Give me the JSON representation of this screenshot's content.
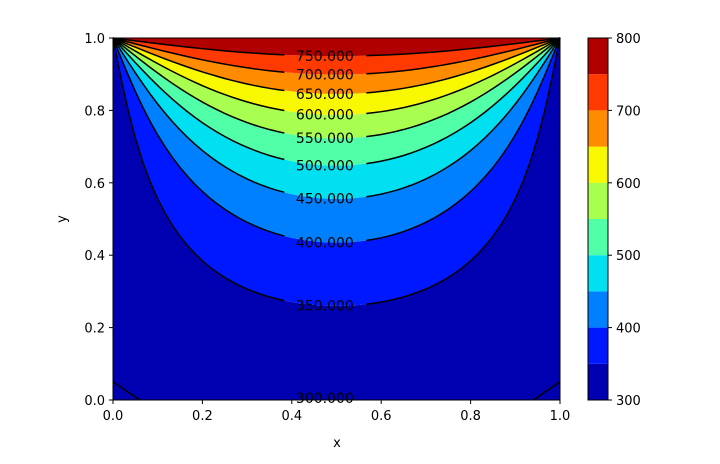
{
  "chart_data": {
    "type": "contour",
    "title": "",
    "xlabel": "x",
    "ylabel": "y",
    "xlim": [
      0.0,
      1.0
    ],
    "ylim": [
      0.0,
      1.0
    ],
    "x_ticks": [
      "0.0",
      "0.2",
      "0.4",
      "0.6",
      "0.8",
      "1.0"
    ],
    "y_ticks": [
      "0.0",
      "0.2",
      "0.4",
      "0.6",
      "0.8",
      "1.0"
    ],
    "field": "Laplace solution on unit square: top boundary 800, other boundaries 300",
    "levels": [
      300,
      350,
      400,
      450,
      500,
      550,
      600,
      650,
      700,
      750,
      800
    ],
    "contour_labels": [
      "300.000",
      "350.000",
      "400.000",
      "450.000",
      "500.000",
      "550.000",
      "600.000",
      "650.000",
      "700.000",
      "750.000"
    ],
    "band_colors": [
      "#0000b0",
      "#0018ff",
      "#0080ff",
      "#00e0f0",
      "#50ffa8",
      "#a8ff50",
      "#f8f800",
      "#ff8c00",
      "#ff3a00",
      "#b00000"
    ],
    "colorbar": {
      "ticks": [
        "300",
        "400",
        "500",
        "600",
        "700",
        "800"
      ],
      "range": [
        300,
        800
      ]
    }
  }
}
